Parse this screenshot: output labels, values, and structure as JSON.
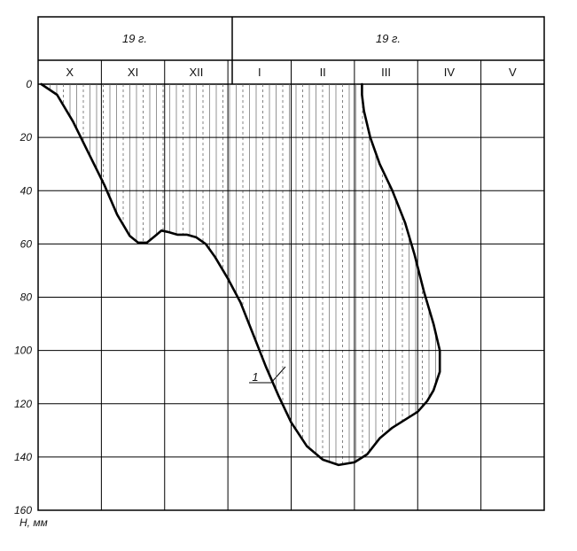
{
  "chart_data": {
    "type": "line",
    "header": {
      "years": [
        "19   г.",
        "19   г."
      ]
    },
    "months": [
      "X",
      "XI",
      "XII",
      "I",
      "II",
      "III",
      "IV",
      "V"
    ],
    "y_axis": {
      "ticks": [
        0,
        20,
        40,
        60,
        80,
        100,
        120,
        140,
        160
      ],
      "unit_label": "H, мм",
      "ylim": [
        0,
        160
      ],
      "inverted": true
    },
    "x_axis": {
      "unit": "month index (0 = start of X, 8 = end of V)",
      "xlim": [
        0,
        8
      ]
    },
    "grid": true,
    "series": [
      {
        "name": "1",
        "values": [
          [
            0.05,
            0
          ],
          [
            0.3,
            4
          ],
          [
            0.55,
            14
          ],
          [
            0.8,
            26
          ],
          [
            1.05,
            38
          ],
          [
            1.25,
            49
          ],
          [
            1.45,
            57
          ],
          [
            1.58,
            59.5
          ],
          [
            1.72,
            59.5
          ],
          [
            1.85,
            57
          ],
          [
            1.95,
            55
          ],
          [
            2.05,
            55.5
          ],
          [
            2.2,
            56.5
          ],
          [
            2.35,
            56.5
          ],
          [
            2.5,
            57.5
          ],
          [
            2.65,
            60
          ],
          [
            2.8,
            65
          ],
          [
            3.0,
            73
          ],
          [
            3.2,
            82
          ],
          [
            3.4,
            94
          ],
          [
            3.6,
            106
          ],
          [
            3.8,
            117
          ],
          [
            4.0,
            127
          ],
          [
            4.25,
            136
          ],
          [
            4.5,
            141
          ],
          [
            4.75,
            143
          ],
          [
            5.0,
            142
          ],
          [
            5.2,
            139
          ],
          [
            5.4,
            133
          ],
          [
            5.6,
            129
          ],
          [
            5.8,
            126
          ],
          [
            6.0,
            123
          ],
          [
            6.15,
            119
          ],
          [
            6.25,
            115
          ],
          [
            6.35,
            108
          ],
          [
            6.35,
            100
          ],
          [
            6.25,
            90
          ],
          [
            6.1,
            78
          ],
          [
            5.95,
            64
          ],
          [
            5.8,
            52
          ],
          [
            5.6,
            40
          ],
          [
            5.4,
            30
          ],
          [
            5.25,
            20
          ],
          [
            5.15,
            10
          ],
          [
            5.12,
            4
          ],
          [
            5.12,
            0
          ]
        ]
      }
    ]
  }
}
